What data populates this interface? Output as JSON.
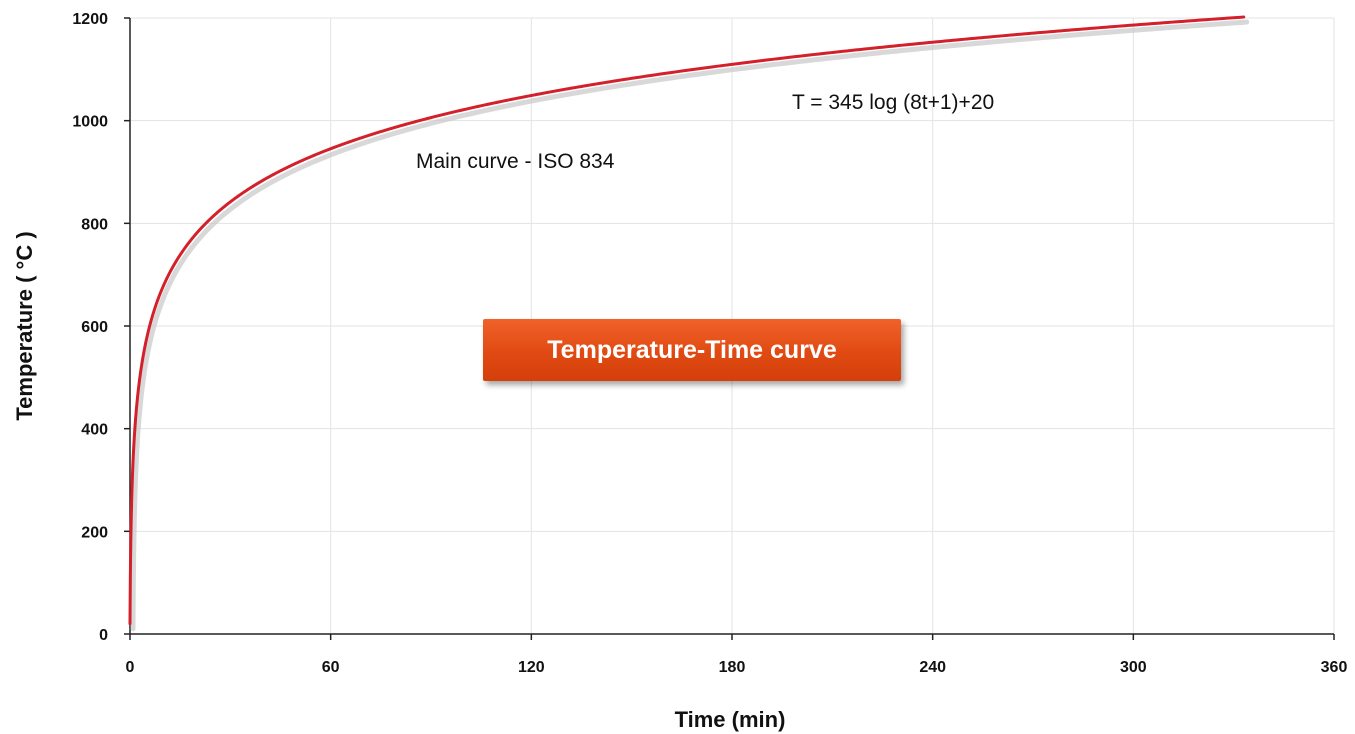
{
  "chart_data": {
    "type": "line",
    "title": "Temperature-Time curve",
    "xlabel": "Time (min)",
    "ylabel": "Temperature  ( °C )",
    "xlim": [
      0,
      360
    ],
    "ylim": [
      0,
      1200
    ],
    "x_ticks": [
      "0",
      "60",
      "120",
      "180",
      "240",
      "300",
      "360"
    ],
    "y_ticks": [
      "0",
      "200",
      "400",
      "600",
      "800",
      "1000",
      "1200"
    ],
    "grid": true,
    "series": [
      {
        "name": "Main curve - ISO 834",
        "color": "#d3202a",
        "x": [
          0,
          1,
          2,
          3,
          5,
          7.5,
          10,
          15,
          20,
          30,
          45,
          60,
          90,
          120,
          180,
          240,
          300,
          333
        ],
        "y": [
          20,
          349,
          445,
          502,
          576,
          633,
          678,
          739,
          781,
          842,
          902,
          945,
          1006,
          1049,
          1110,
          1153,
          1186,
          1202
        ]
      }
    ],
    "annotations": {
      "equation": "T = 345 log (8t+1)+20",
      "curve_label": "Main curve - ISO 834"
    }
  },
  "colors": {
    "curve": "#d3202a",
    "curve_shadow": "#c8c8c8",
    "grid": "#e3e3e3",
    "axis": "#222222",
    "badge": "#e04a12"
  }
}
